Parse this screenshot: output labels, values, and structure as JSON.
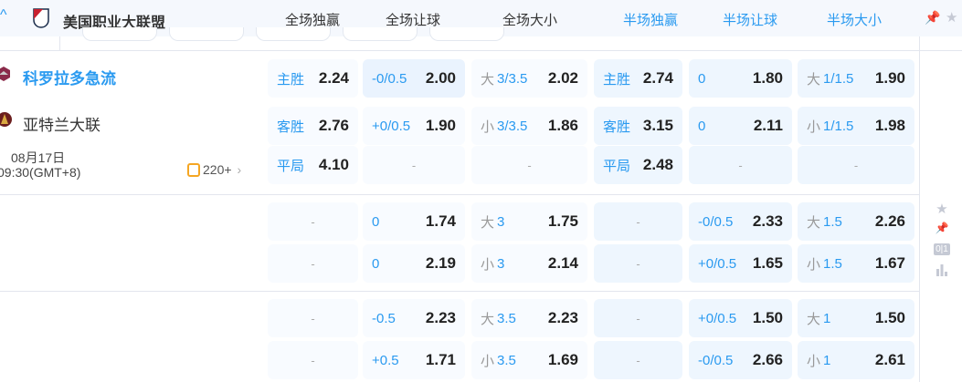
{
  "league": {
    "name": "美国职业大联盟"
  },
  "columns": [
    "全场独赢",
    "全场让球",
    "全场大小",
    "半场独赢",
    "半场让球",
    "半场大小"
  ],
  "colors": {
    "accent": "#2a9af0",
    "half_bg": "#eef6fe",
    "full_bg": "#f8fbff"
  },
  "match": {
    "home": "科罗拉多急流",
    "away": "亚特兰大联",
    "date": "08月17日",
    "time": "09:30(GMT+8)",
    "more": "220+"
  },
  "rows": [
    [
      {
        "l": "主胜",
        "v": "2.24"
      },
      {
        "l": "-0/0.5",
        "v": "2.00"
      },
      {
        "p": "大",
        "l": "3/3.5",
        "v": "2.02"
      },
      {
        "l": "主胜",
        "v": "2.74"
      },
      {
        "l": "0",
        "v": "1.80"
      },
      {
        "p": "大",
        "l": "1/1.5",
        "v": "1.90"
      }
    ],
    [
      {
        "l": "客胜",
        "v": "2.76"
      },
      {
        "l": "+0/0.5",
        "v": "1.90"
      },
      {
        "p": "小",
        "l": "3/3.5",
        "v": "1.86"
      },
      {
        "l": "客胜",
        "v": "3.15"
      },
      {
        "l": "0",
        "v": "2.11"
      },
      {
        "p": "小",
        "l": "1/1.5",
        "v": "1.98"
      }
    ],
    [
      {
        "l": "平局",
        "v": "4.10"
      },
      {
        "d": "-"
      },
      {
        "d": "-"
      },
      {
        "l": "平局",
        "v": "2.48"
      },
      {
        "d": "-"
      },
      {
        "d": "-"
      }
    ],
    [
      {
        "d": "-"
      },
      {
        "l": "0",
        "v": "1.74"
      },
      {
        "p": "大",
        "l": "3",
        "v": "1.75"
      },
      {
        "d": "-"
      },
      {
        "l": "-0/0.5",
        "v": "2.33"
      },
      {
        "p": "大",
        "l": "1.5",
        "v": "2.26"
      }
    ],
    [
      {
        "d": "-"
      },
      {
        "l": "0",
        "v": "2.19"
      },
      {
        "p": "小",
        "l": "3",
        "v": "2.14"
      },
      {
        "d": "-"
      },
      {
        "l": "+0/0.5",
        "v": "1.65"
      },
      {
        "p": "小",
        "l": "1.5",
        "v": "1.67"
      }
    ],
    [
      {
        "d": "-"
      },
      {
        "l": "-0.5",
        "v": "2.23"
      },
      {
        "p": "大",
        "l": "3.5",
        "v": "2.23"
      },
      {
        "d": "-"
      },
      {
        "l": "+0/0.5",
        "v": "1.50"
      },
      {
        "p": "大",
        "l": "1",
        "v": "1.50"
      }
    ],
    [
      {
        "d": "-"
      },
      {
        "l": "+0.5",
        "v": "1.71"
      },
      {
        "p": "小",
        "l": "3.5",
        "v": "1.69"
      },
      {
        "d": "-"
      },
      {
        "l": "-0/0.5",
        "v": "2.66"
      },
      {
        "p": "小",
        "l": "1",
        "v": "2.61"
      }
    ]
  ],
  "icons": {
    "header": [
      "pin-icon",
      "star-icon"
    ],
    "side": [
      "star-icon",
      "pin-icon",
      "score-icon",
      "stats-icon"
    ]
  }
}
